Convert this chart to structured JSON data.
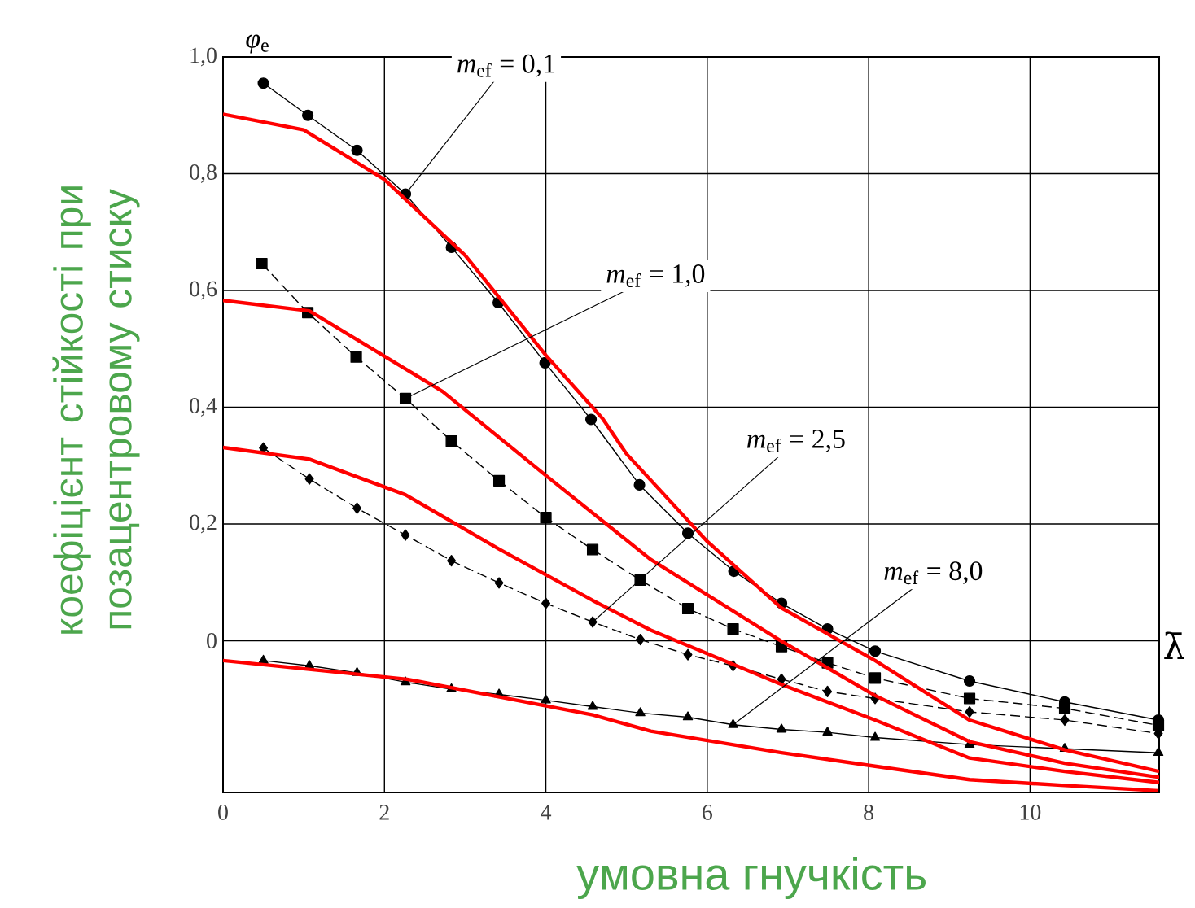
{
  "chart_data": {
    "type": "line",
    "xlabel": "умовна гнучкість",
    "ylabel": "коефіцієнт стійкості при позацентровому стиску",
    "xlim": [
      0,
      11.6
    ],
    "ylim": [
      -0.26,
      1.0
    ],
    "xticks": [
      0,
      2,
      4,
      6,
      8,
      10
    ],
    "yticks": [
      {
        "value": 0,
        "label": "0"
      },
      {
        "value": 0.2,
        "label": "0,2"
      },
      {
        "value": 0.4,
        "label": "0,4"
      },
      {
        "value": 0.6,
        "label": "0,6"
      },
      {
        "value": 0.8,
        "label": "0,8"
      },
      {
        "value": 1.0,
        "label": "1,0"
      }
    ],
    "grid": true,
    "series": [
      {
        "color": "#000000",
        "marker": "circle",
        "line_style": "solid",
        "x": [
          0.5,
          1.05,
          1.66,
          2.26,
          2.83,
          3.41,
          3.99,
          4.56,
          5.16,
          5.76,
          6.33,
          6.92,
          7.49,
          8.08,
          9.25,
          10.43,
          11.59
        ],
        "values": [
          0.955,
          0.9,
          0.84,
          0.765,
          0.674,
          0.579,
          0.476,
          0.379,
          0.267,
          0.184,
          0.119,
          0.064,
          0.02,
          -0.018,
          -0.069,
          -0.105,
          -0.136
        ]
      },
      {
        "color": "#000000",
        "marker": "square",
        "line_style": "dashed",
        "x": [
          0.48,
          1.05,
          1.65,
          2.26,
          2.83,
          3.42,
          4.0,
          4.58,
          5.17,
          5.76,
          6.32,
          6.92,
          7.49,
          8.08,
          9.25,
          10.43,
          11.59
        ],
        "values": [
          0.646,
          0.562,
          0.486,
          0.415,
          0.342,
          0.274,
          0.211,
          0.156,
          0.104,
          0.055,
          0.02,
          -0.01,
          -0.038,
          -0.064,
          -0.099,
          -0.116,
          -0.145
        ]
      },
      {
        "color": "#000000",
        "marker": "diamond",
        "line_style": "dashed",
        "x": [
          0.5,
          1.07,
          1.66,
          2.26,
          2.83,
          3.42,
          4.0,
          4.58,
          5.17,
          5.76,
          6.32,
          6.92,
          7.49,
          8.08,
          9.25,
          10.43,
          11.59
        ],
        "values": [
          0.33,
          0.277,
          0.227,
          0.181,
          0.137,
          0.099,
          0.064,
          0.032,
          0.002,
          -0.024,
          -0.043,
          -0.066,
          -0.087,
          -0.099,
          -0.122,
          -0.136,
          -0.159
        ]
      },
      {
        "color": "#000000",
        "marker": "triangle",
        "line_style": "solid",
        "x": [
          0.5,
          1.07,
          1.66,
          2.26,
          2.83,
          3.42,
          4.0,
          4.58,
          5.17,
          5.76,
          6.32,
          6.92,
          7.49,
          8.08,
          9.25,
          10.43,
          11.59
        ],
        "values": [
          -0.034,
          -0.043,
          -0.055,
          -0.071,
          -0.083,
          -0.092,
          -0.102,
          -0.113,
          -0.124,
          -0.131,
          -0.144,
          -0.152,
          -0.157,
          -0.166,
          -0.178,
          -0.185,
          -0.192
        ]
      },
      {
        "color": "#ff0000",
        "marker": "none",
        "line_style": "solid",
        "x": [
          0,
          1,
          2,
          3,
          4,
          4.7,
          5,
          6,
          6.92,
          8.08,
          9.25,
          10.43,
          11.6
        ],
        "values": [
          0.902,
          0.875,
          0.79,
          0.66,
          0.489,
          0.381,
          0.32,
          0.17,
          0.056,
          -0.034,
          -0.136,
          -0.187,
          -0.224
        ]
      },
      {
        "color": "#ff0000",
        "marker": "none",
        "line_style": "solid",
        "x": [
          0,
          1.07,
          2.28,
          2.72,
          4.0,
          5.3,
          6.92,
          8.08,
          9.25,
          10.43,
          11.6
        ],
        "values": [
          0.583,
          0.565,
          0.464,
          0.427,
          0.283,
          0.139,
          -0.001,
          -0.094,
          -0.173,
          -0.21,
          -0.234
        ]
      },
      {
        "color": "#ff0000",
        "marker": "none",
        "line_style": "solid",
        "x": [
          0,
          1.07,
          2.26,
          3.42,
          4.58,
          5.3,
          6.92,
          8.08,
          9.25,
          10.43,
          11.6
        ],
        "values": [
          0.331,
          0.311,
          0.25,
          0.157,
          0.069,
          0.018,
          -0.075,
          -0.136,
          -0.201,
          -0.224,
          -0.243
        ]
      },
      {
        "color": "#ff0000",
        "marker": "none",
        "line_style": "solid",
        "x": [
          0,
          2.28,
          4.58,
          5.3,
          6.92,
          8.08,
          9.25,
          10.43,
          11.59
        ],
        "values": [
          -0.034,
          -0.066,
          -0.127,
          -0.155,
          -0.192,
          -0.215,
          -0.238,
          -0.248,
          -0.257
        ]
      }
    ],
    "annotations": [
      {
        "text": "*m*$_{ef}$ = 0,1",
        "x": 2.26,
        "y": 0.765
      },
      {
        "text": "*m*$_{ef}$ = 1,0",
        "x": 2.26,
        "y": 0.415
      },
      {
        "text": "*m*$_{ef}$ = 2,5",
        "x": 4.58,
        "y": 0.032
      },
      {
        "text": "*m*$_{ef}$ = 8,0",
        "x": 6.32,
        "y": -0.144
      },
      "*φ*$_{e}$",
      "λ̄"
    ]
  }
}
